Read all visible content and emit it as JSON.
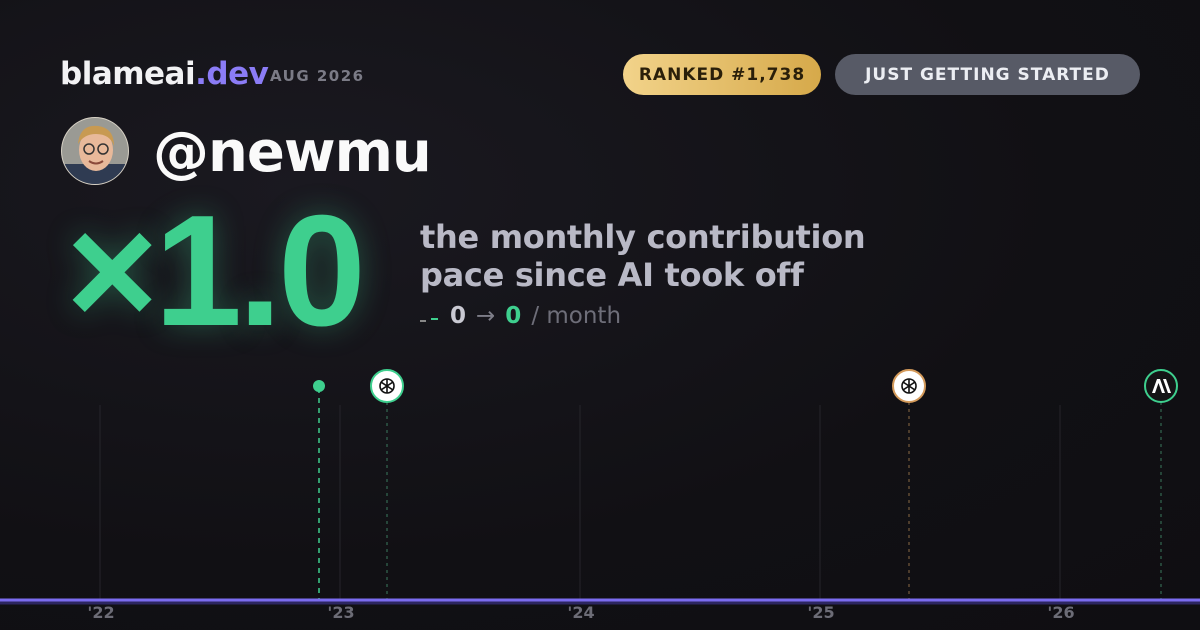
{
  "header": {
    "brand": "blameai",
    "brand_suffix": ".dev",
    "period": "AUG 2026",
    "rank_badge": "RANKED #1,738",
    "status_badge": "JUST GETTING STARTED"
  },
  "profile": {
    "handle": "@newmu"
  },
  "headline": {
    "multiplier": "×1.0",
    "caption_lines": [
      "the monthly contribution",
      "pace since AI took off"
    ],
    "from": "0",
    "arrow": "→",
    "to": "0",
    "unit": "/ month"
  },
  "timeline": {
    "labels": [
      "'22",
      "'23",
      "'24",
      "'25",
      "'26"
    ]
  }
}
